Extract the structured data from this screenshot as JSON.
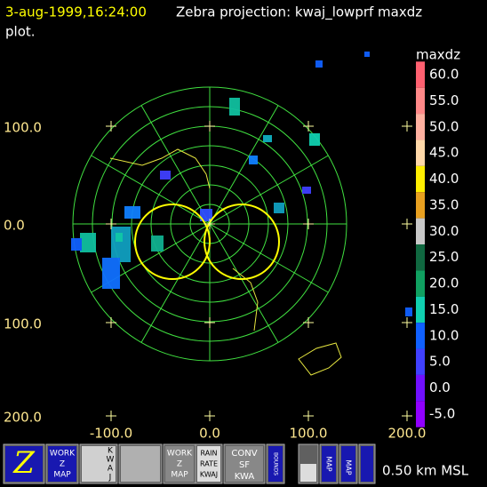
{
  "header": {
    "timestamp": "3-aug-1999,16:24:00",
    "title": "Zebra projection: kwaj_lowprf maxdz",
    "title_cont": "plot."
  },
  "plot": {
    "y_labels": [
      "100.0",
      "0.0",
      "100.0",
      "200.0"
    ],
    "x_labels": [
      "-100.0",
      "0.0",
      "100.0",
      "200.0"
    ]
  },
  "colorbar": {
    "title": "maxdz",
    "labels": [
      "60.0",
      "55.0",
      "50.0",
      "45.0",
      "40.0",
      "35.0",
      "30.0",
      "25.0",
      "20.0",
      "15.0",
      "10.0",
      "5.0",
      "0.0",
      "-5.0"
    ],
    "colors": [
      "#ff6070",
      "#ff8888",
      "#ffb0a0",
      "#ffd8a8",
      "#ffee00",
      "#e8a020",
      "#c8c8c8",
      "#106840",
      "#10a060",
      "#10d0b0",
      "#1060ff",
      "#4040ff",
      "#7010ff",
      "#9000ff"
    ]
  },
  "toolbar": {
    "z_icon": "Z",
    "work_map_1": [
      "WORK",
      "Z",
      "MAP"
    ],
    "kwaj_letters": [
      "K",
      "W",
      "A",
      "J"
    ],
    "work_map_2": [
      "WORK",
      "Z",
      "MAP"
    ],
    "rain_rate": [
      "RAIN",
      "RATE",
      "KWAJ"
    ],
    "conv": [
      "CONV",
      "SF",
      "KWA"
    ],
    "bounds": "BOUNDS",
    "map_1": "MAP",
    "map_2": "MAP",
    "altitude": "0.50 km MSL"
  }
}
